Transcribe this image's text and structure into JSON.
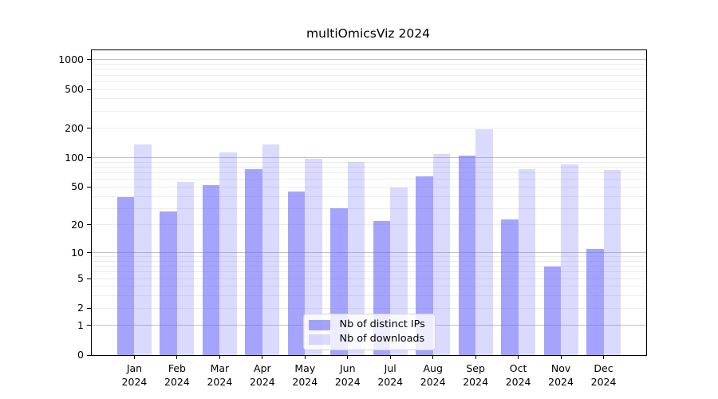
{
  "chart_data": {
    "type": "bar",
    "title": "multiOmicsViz 2024",
    "categories": [
      "Jan 2024",
      "Feb 2024",
      "Mar 2024",
      "Apr 2024",
      "May 2024",
      "Jun 2024",
      "Jul 2024",
      "Aug 2024",
      "Sep 2024",
      "Oct 2024",
      "Nov 2024",
      "Dec 2024"
    ],
    "series": [
      {
        "name": "Nb of distinct IPs",
        "color": "rgba(108,108,250,0.62)",
        "values": [
          39,
          28,
          52,
          77,
          45,
          30,
          22,
          64,
          105,
          23,
          7,
          11
        ]
      },
      {
        "name": "Nb of downloads",
        "color": "rgba(108,108,250,0.25)",
        "values": [
          138,
          57,
          113,
          137,
          97,
          91,
          49,
          109,
          196,
          77,
          86,
          75
        ]
      }
    ],
    "yscale": "log10(x+1)",
    "yticks": [
      0,
      1,
      2,
      5,
      10,
      20,
      50,
      100,
      200,
      500,
      1000
    ],
    "major_gridline_values": [
      1,
      10,
      100,
      1000
    ],
    "ylim": [
      0,
      1251
    ],
    "xlabel": "",
    "ylabel": "",
    "grid": true,
    "legend_position": "bottom-center",
    "colors": {
      "bars_base": "#6c6cfa",
      "grid_major": "#c2c2c2",
      "grid_minor": "#ececec",
      "axis": "#000000",
      "background": "#ffffff"
    }
  }
}
